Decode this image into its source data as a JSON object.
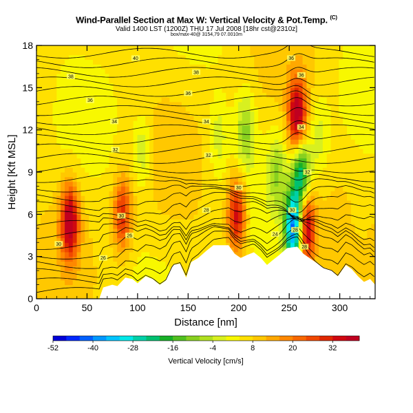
{
  "header": {
    "title": "Wind-Parallel Section at Max W: Vertical Velocity & Pot.Temp.",
    "title_mark": "(C)",
    "valid_line": "Valid 1400 LST (1200Z) THU 17 Jul 2008 [18hr cst@2310z]",
    "info_line": "box/max-40@ 3154,79 07.0010m"
  },
  "chart_data": {
    "type": "heatmap",
    "xlabel": "Distance [nm]",
    "ylabel": "Height [Kft MSL]",
    "xlim": [
      0,
      335
    ],
    "ylim": [
      0,
      18
    ],
    "x_ticks": [
      "0",
      "50",
      "100",
      "150",
      "200",
      "250",
      "300"
    ],
    "y_ticks": [
      "0",
      "3",
      "6",
      "9",
      "12",
      "15",
      "18"
    ],
    "grid": false,
    "colorbar": {
      "label": "Vertical Velocity [cm/s]",
      "tick_labels": [
        "-52",
        "-40",
        "-28",
        "-16",
        "-4",
        "8",
        "20",
        "32"
      ],
      "bins": [
        -52,
        -48,
        -44,
        -40,
        -36,
        -32,
        -28,
        -24,
        -20,
        -16,
        -12,
        -8,
        -4,
        0,
        4,
        8,
        12,
        16,
        20,
        24,
        28,
        32,
        36,
        40
      ],
      "colors": [
        "#0000d8",
        "#0028ff",
        "#0060ff",
        "#0098ff",
        "#00c4ff",
        "#00e8e8",
        "#00d0a8",
        "#00c070",
        "#18b028",
        "#50c020",
        "#88d020",
        "#b0e020",
        "#d8f020",
        "#f8f800",
        "#ffe000",
        "#ffc800",
        "#ffa800",
        "#ff8800",
        "#f86800",
        "#f04800",
        "#e02800",
        "#d00810",
        "#c00020"
      ]
    },
    "terrain_kft": [
      [
        0,
        0
      ],
      [
        62,
        0
      ],
      [
        66,
        0.8
      ],
      [
        75,
        1.0
      ],
      [
        80,
        0.9
      ],
      [
        88,
        1.5
      ],
      [
        95,
        1.4
      ],
      [
        100,
        1.1
      ],
      [
        108,
        1.6
      ],
      [
        115,
        1.4
      ],
      [
        122,
        1.0
      ],
      [
        128,
        1.3
      ],
      [
        135,
        2.4
      ],
      [
        142,
        2.5
      ],
      [
        148,
        1.5
      ],
      [
        153,
        2.6
      ],
      [
        160,
        2.9
      ],
      [
        168,
        3.4
      ],
      [
        175,
        3.8
      ],
      [
        190,
        3.8
      ],
      [
        196,
        3.2
      ],
      [
        202,
        2.9
      ],
      [
        208,
        3.1
      ],
      [
        215,
        3.3
      ],
      [
        222,
        2.9
      ],
      [
        228,
        2.4
      ],
      [
        233,
        2.7
      ],
      [
        240,
        3.1
      ],
      [
        248,
        3.6
      ],
      [
        258,
        3.7
      ],
      [
        264,
        3.2
      ],
      [
        270,
        2.9
      ],
      [
        278,
        2.5
      ],
      [
        284,
        2.2
      ],
      [
        292,
        2.0
      ],
      [
        298,
        1.6
      ],
      [
        306,
        2.4
      ],
      [
        312,
        2.1
      ],
      [
        318,
        1.6
      ],
      [
        324,
        1.2
      ],
      [
        330,
        1.4
      ],
      [
        335,
        1.0
      ]
    ],
    "features": [
      {
        "x": 33,
        "y": 5.5,
        "value": 34
      },
      {
        "x": 85,
        "y": 6.0,
        "value": 24
      },
      {
        "x": 105,
        "y": 10.5,
        "value": -10
      },
      {
        "x": 180,
        "y": 11.5,
        "value": -8
      },
      {
        "x": 207,
        "y": 12.0,
        "value": -14
      },
      {
        "x": 198,
        "y": 6.0,
        "value": 30
      },
      {
        "x": 238,
        "y": 9.0,
        "value": -12
      },
      {
        "x": 255,
        "y": 5.0,
        "value": -50
      },
      {
        "x": 262,
        "y": 9.0,
        "value": -30
      },
      {
        "x": 266,
        "y": 5.0,
        "value": 38
      },
      {
        "x": 258,
        "y": 13.0,
        "value": 36
      },
      {
        "x": 280,
        "y": 11.5,
        "value": -8
      },
      {
        "x": 320,
        "y": 6.5,
        "value": -4
      }
    ],
    "isentrope_labels": [
      {
        "x": 98,
        "y": 17.1,
        "text": "40"
      },
      {
        "x": 252,
        "y": 17.1,
        "text": "36"
      },
      {
        "x": 34,
        "y": 15.8,
        "text": "38"
      },
      {
        "x": 158,
        "y": 16.1,
        "text": "38"
      },
      {
        "x": 262,
        "y": 15.9,
        "text": "36"
      },
      {
        "x": 53,
        "y": 14.1,
        "text": "36"
      },
      {
        "x": 150,
        "y": 14.6,
        "text": "36"
      },
      {
        "x": 77,
        "y": 12.6,
        "text": "34"
      },
      {
        "x": 168,
        "y": 12.6,
        "text": "34"
      },
      {
        "x": 262,
        "y": 12.2,
        "text": "34"
      },
      {
        "x": 78,
        "y": 10.6,
        "text": "32"
      },
      {
        "x": 170,
        "y": 10.2,
        "text": "32"
      },
      {
        "x": 268,
        "y": 9.0,
        "text": "32"
      },
      {
        "x": 200,
        "y": 7.9,
        "text": "30"
      },
      {
        "x": 84,
        "y": 5.9,
        "text": "30"
      },
      {
        "x": 168,
        "y": 6.3,
        "text": "28"
      },
      {
        "x": 253,
        "y": 6.3,
        "text": "30"
      },
      {
        "x": 22,
        "y": 3.9,
        "text": "30"
      },
      {
        "x": 92,
        "y": 4.5,
        "text": "26"
      },
      {
        "x": 236,
        "y": 4.6,
        "text": "24"
      },
      {
        "x": 256,
        "y": 4.9,
        "text": "28"
      },
      {
        "x": 66,
        "y": 2.9,
        "text": "26"
      },
      {
        "x": 265,
        "y": 3.7,
        "text": "28"
      }
    ]
  }
}
